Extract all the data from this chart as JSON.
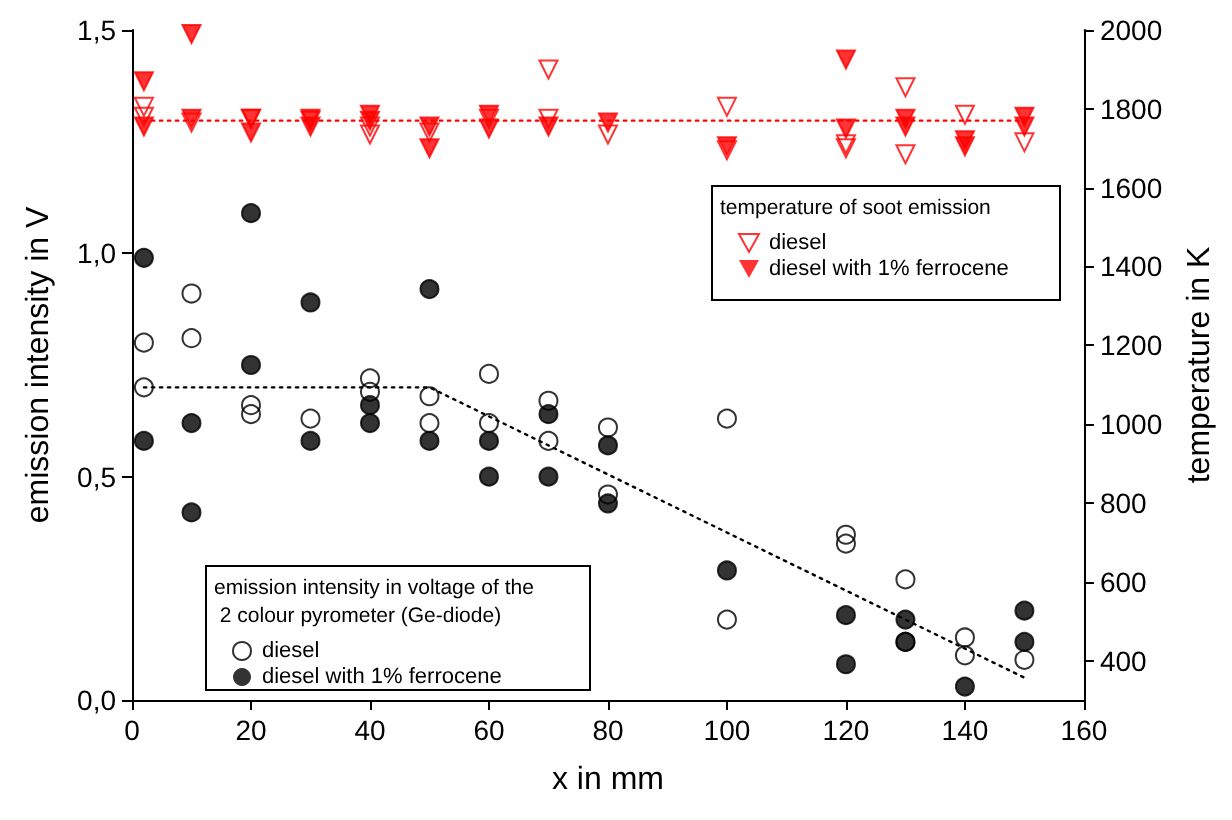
{
  "chart_data": {
    "type": "scatter",
    "xlabel": "x in mm",
    "ylabel": "emission intensity in V",
    "y2label": "temperature in K",
    "xlim": [
      0,
      160
    ],
    "xticks": [
      0,
      20,
      40,
      60,
      80,
      100,
      120,
      140,
      160
    ],
    "ylim": [
      0,
      1.5
    ],
    "yticks": [
      {
        "value": 0,
        "label": "0,0"
      },
      {
        "value": 0.5,
        "label": "0,5"
      },
      {
        "value": 1,
        "label": "1,0"
      },
      {
        "value": 1.5,
        "label": "1,5"
      }
    ],
    "y2lim": [
      300,
      2000
    ],
    "y2ticks": [
      400,
      600,
      800,
      1000,
      1200,
      1400,
      1600,
      1800,
      2000
    ],
    "legend": [
      "bottom left",
      "top right"
    ],
    "legend_title": [
      "emission intensity in voltage of the 2 colour pyrometer (Ge-diode)",
      "temperature of soot emission"
    ],
    "series": [
      {
        "name": "diesel",
        "marker": "circle",
        "color": "#000000",
        "x": [
          2,
          2,
          10,
          10,
          20,
          20,
          30,
          40,
          40,
          50,
          50,
          60,
          60,
          70,
          70,
          80,
          80,
          100,
          100,
          120,
          120,
          130,
          130,
          140,
          140,
          150
        ],
        "values": [
          0.8,
          0.7,
          0.91,
          0.81,
          0.66,
          0.64,
          0.63,
          0.72,
          0.69,
          0.68,
          0.62,
          0.73,
          0.62,
          0.67,
          0.58,
          0.61,
          0.46,
          0.63,
          0.18,
          0.37,
          0.35,
          0.27,
          0.13,
          0.14,
          0.1,
          0.09
        ]
      },
      {
        "name": "diesel with 1% ferrocene",
        "marker": "circle",
        "color": "#000000",
        "x": [
          2,
          2,
          10,
          10,
          20,
          20,
          30,
          30,
          40,
          40,
          50,
          50,
          60,
          60,
          70,
          70,
          80,
          80,
          100,
          120,
          120,
          130,
          130,
          140,
          150,
          150
        ],
        "values": [
          0.99,
          0.58,
          0.62,
          0.42,
          1.09,
          0.75,
          0.89,
          0.58,
          0.66,
          0.62,
          0.92,
          0.58,
          0.58,
          0.5,
          0.64,
          0.5,
          0.57,
          0.44,
          0.29,
          0.19,
          0.08,
          0.18,
          0.13,
          0.03,
          0.2,
          0.13
        ]
      },
      {
        "type": "line",
        "line_style": "dotted",
        "marker": "none",
        "color": "#000000",
        "x": [
          2,
          50,
          150
        ],
        "values": [
          0.7,
          0.7,
          0.05
        ]
      },
      {
        "name": "diesel",
        "axis": "y2",
        "marker": "triangle",
        "color": "#ff0000",
        "x": [
          2,
          2,
          10,
          20,
          30,
          40,
          40,
          50,
          60,
          70,
          70,
          80,
          100,
          100,
          120,
          120,
          130,
          130,
          140,
          150
        ],
        "values": [
          1805,
          1780,
          1765,
          1775,
          1770,
          1755,
          1735,
          1740,
          1775,
          1900,
          1775,
          1735,
          1805,
          1695,
          1710,
          1700,
          1855,
          1685,
          1785,
          1715
        ]
      },
      {
        "name": "diesel with 1% ferrocene",
        "axis": "y2",
        "marker": "triangle",
        "color": "#ff0000",
        "x": [
          2,
          2,
          10,
          10,
          20,
          20,
          30,
          30,
          40,
          40,
          50,
          50,
          60,
          60,
          70,
          80,
          100,
          120,
          120,
          130,
          130,
          140,
          140,
          150,
          150
        ],
        "values": [
          1870,
          1755,
          1990,
          1775,
          1775,
          1740,
          1775,
          1755,
          1785,
          1770,
          1755,
          1700,
          1785,
          1750,
          1755,
          1765,
          1705,
          1925,
          1750,
          1775,
          1755,
          1720,
          1705,
          1780,
          1755
        ]
      },
      {
        "type": "line",
        "axis": "y2",
        "line_style": "dotted",
        "marker": "none",
        "color": "#ff0000",
        "x": [
          2,
          150
        ],
        "values": [
          1770,
          1770
        ]
      }
    ]
  }
}
